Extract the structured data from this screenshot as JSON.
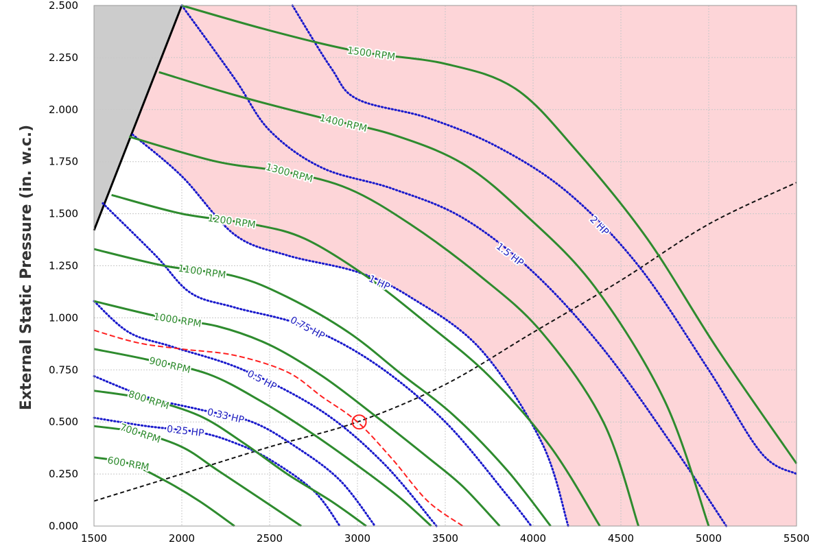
{
  "chart_data": {
    "type": "line",
    "title": "",
    "xlabel": "",
    "ylabel": "External Static Pressure (in. w.c.)",
    "xlim": [
      1500,
      5500
    ],
    "ylim": [
      0,
      2.5
    ],
    "x_ticks": [
      "1500",
      "2000",
      "2500",
      "3000",
      "3500",
      "4000",
      "4500",
      "5000",
      "5500"
    ],
    "y_ticks": [
      "0.000",
      "0.250",
      "0.500",
      "0.750",
      "1.000",
      "1.250",
      "1.500",
      "1.750",
      "2.000",
      "2.250",
      "2.500"
    ],
    "grid": true,
    "colors": {
      "rpm": "#2e8b2e",
      "hp": "#1a1acc",
      "hp_label": "#2020c0",
      "system": "#111111",
      "operating": "#ff2020",
      "shade_pink": "#fdd5d8",
      "shade_gray": "#cccccc"
    },
    "rpm_curves": [
      {
        "name": "600 RPM",
        "points": [
          [
            1500,
            0.33
          ],
          [
            1700,
            0.3
          ],
          [
            1900,
            0.22
          ],
          [
            2100,
            0.12
          ],
          [
            2300,
            0.0
          ]
        ]
      },
      {
        "name": "700 RPM",
        "points": [
          [
            1500,
            0.48
          ],
          [
            1750,
            0.45
          ],
          [
            2000,
            0.38
          ],
          [
            2200,
            0.27
          ],
          [
            2450,
            0.13
          ],
          [
            2680,
            0.0
          ]
        ]
      },
      {
        "name": "800 RPM",
        "points": [
          [
            1500,
            0.65
          ],
          [
            1800,
            0.61
          ],
          [
            2100,
            0.53
          ],
          [
            2350,
            0.4
          ],
          [
            2600,
            0.25
          ],
          [
            2850,
            0.12
          ],
          [
            3050,
            0.0
          ]
        ]
      },
      {
        "name": "900 RPM",
        "points": [
          [
            1500,
            0.85
          ],
          [
            1800,
            0.8
          ],
          [
            2150,
            0.73
          ],
          [
            2450,
            0.6
          ],
          [
            2750,
            0.44
          ],
          [
            3050,
            0.26
          ],
          [
            3250,
            0.13
          ],
          [
            3420,
            0.0
          ]
        ]
      },
      {
        "name": "1000 RPM",
        "points": [
          [
            1500,
            1.08
          ],
          [
            1900,
            1.0
          ],
          [
            2200,
            0.96
          ],
          [
            2500,
            0.87
          ],
          [
            2800,
            0.72
          ],
          [
            3100,
            0.53
          ],
          [
            3400,
            0.33
          ],
          [
            3600,
            0.19
          ],
          [
            3810,
            0.0
          ]
        ]
      },
      {
        "name": "1100 RPM",
        "points": [
          [
            1500,
            1.33
          ],
          [
            1900,
            1.25
          ],
          [
            2300,
            1.2
          ],
          [
            2600,
            1.1
          ],
          [
            2950,
            0.93
          ],
          [
            3250,
            0.73
          ],
          [
            3550,
            0.53
          ],
          [
            3850,
            0.27
          ],
          [
            4100,
            0.0
          ]
        ]
      },
      {
        "name": "1200 RPM",
        "points": [
          [
            1600,
            1.59
          ],
          [
            2000,
            1.5
          ],
          [
            2400,
            1.45
          ],
          [
            2700,
            1.38
          ],
          [
            3050,
            1.2
          ],
          [
            3400,
            0.97
          ],
          [
            3750,
            0.72
          ],
          [
            4100,
            0.38
          ],
          [
            4380,
            0.0
          ]
        ]
      },
      {
        "name": "1300 RPM",
        "points": [
          [
            1700,
            1.87
          ],
          [
            2200,
            1.75
          ],
          [
            2600,
            1.7
          ],
          [
            2950,
            1.62
          ],
          [
            3300,
            1.45
          ],
          [
            3700,
            1.2
          ],
          [
            4050,
            0.93
          ],
          [
            4400,
            0.5
          ],
          [
            4600,
            0.0
          ]
        ]
      },
      {
        "name": "1400 RPM",
        "points": [
          [
            1870,
            2.18
          ],
          [
            2300,
            2.07
          ],
          [
            2800,
            1.96
          ],
          [
            3200,
            1.88
          ],
          [
            3600,
            1.74
          ],
          [
            3950,
            1.5
          ],
          [
            4350,
            1.15
          ],
          [
            4750,
            0.6
          ],
          [
            5000,
            0.0
          ]
        ]
      },
      {
        "name": "1500 RPM",
        "points": [
          [
            2000,
            2.5
          ],
          [
            2500,
            2.38
          ],
          [
            3000,
            2.28
          ],
          [
            3500,
            2.22
          ],
          [
            3900,
            2.1
          ],
          [
            4250,
            1.8
          ],
          [
            4650,
            1.38
          ],
          [
            5050,
            0.85
          ],
          [
            5500,
            0.3
          ]
        ]
      }
    ],
    "hp_curves": [
      {
        "name": "0.25 HP",
        "points": [
          [
            1500,
            0.52
          ],
          [
            1800,
            0.48
          ],
          [
            2100,
            0.45
          ],
          [
            2300,
            0.4
          ],
          [
            2500,
            0.32
          ],
          [
            2750,
            0.17
          ],
          [
            2900,
            0.0
          ]
        ]
      },
      {
        "name": "0.33 HP",
        "points": [
          [
            1500,
            0.72
          ],
          [
            1800,
            0.62
          ],
          [
            2100,
            0.56
          ],
          [
            2400,
            0.5
          ],
          [
            2650,
            0.38
          ],
          [
            2900,
            0.22
          ],
          [
            3100,
            0.0
          ]
        ]
      },
      {
        "name": "0.5 HP",
        "points": [
          [
            1500,
            1.08
          ],
          [
            1700,
            0.93
          ],
          [
            1950,
            0.86
          ],
          [
            2350,
            0.75
          ],
          [
            2800,
            0.55
          ],
          [
            3150,
            0.3
          ],
          [
            3450,
            0.0
          ]
        ]
      },
      {
        "name": "0.75 HP",
        "points": [
          [
            1550,
            1.55
          ],
          [
            1850,
            1.3
          ],
          [
            2050,
            1.12
          ],
          [
            2300,
            1.05
          ],
          [
            2700,
            0.96
          ],
          [
            3100,
            0.78
          ],
          [
            3500,
            0.5
          ],
          [
            3850,
            0.15
          ],
          [
            3990,
            0.0
          ]
        ]
      },
      {
        "name": "1 HP",
        "points": [
          [
            1720,
            1.88
          ],
          [
            2000,
            1.68
          ],
          [
            2300,
            1.4
          ],
          [
            2600,
            1.3
          ],
          [
            3000,
            1.22
          ],
          [
            3300,
            1.1
          ],
          [
            3700,
            0.85
          ],
          [
            4050,
            0.4
          ],
          [
            4200,
            0.0
          ]
        ]
      },
      {
        "name": "1.5 HP",
        "points": [
          [
            2000,
            2.5
          ],
          [
            2300,
            2.15
          ],
          [
            2500,
            1.9
          ],
          [
            2800,
            1.72
          ],
          [
            3200,
            1.62
          ],
          [
            3600,
            1.48
          ],
          [
            4000,
            1.22
          ],
          [
            4400,
            0.85
          ],
          [
            4800,
            0.38
          ],
          [
            5100,
            0.0
          ]
        ]
      },
      {
        "name": "2 HP",
        "points": [
          [
            2630,
            2.5
          ],
          [
            2850,
            2.2
          ],
          [
            3000,
            2.05
          ],
          [
            3400,
            1.96
          ],
          [
            3800,
            1.82
          ],
          [
            4200,
            1.6
          ],
          [
            4600,
            1.25
          ],
          [
            5000,
            0.75
          ],
          [
            5300,
            0.35
          ],
          [
            5500,
            0.25
          ]
        ]
      }
    ],
    "system_curve": {
      "points": [
        [
          1500,
          0.12
        ],
        [
          2000,
          0.25
        ],
        [
          2500,
          0.38
        ],
        [
          3000,
          0.5
        ],
        [
          3500,
          0.68
        ],
        [
          4000,
          0.93
        ],
        [
          4500,
          1.18
        ],
        [
          5000,
          1.45
        ],
        [
          5500,
          1.65
        ]
      ]
    },
    "operating_curve": {
      "points": [
        [
          1500,
          0.94
        ],
        [
          1750,
          0.88
        ],
        [
          2000,
          0.85
        ],
        [
          2300,
          0.82
        ],
        [
          2600,
          0.74
        ],
        [
          2800,
          0.62
        ],
        [
          3000,
          0.5
        ],
        [
          3200,
          0.32
        ],
        [
          3400,
          0.12
        ],
        [
          3600,
          0.0
        ]
      ]
    },
    "operating_point": {
      "x": 3010,
      "y": 0.5
    }
  }
}
